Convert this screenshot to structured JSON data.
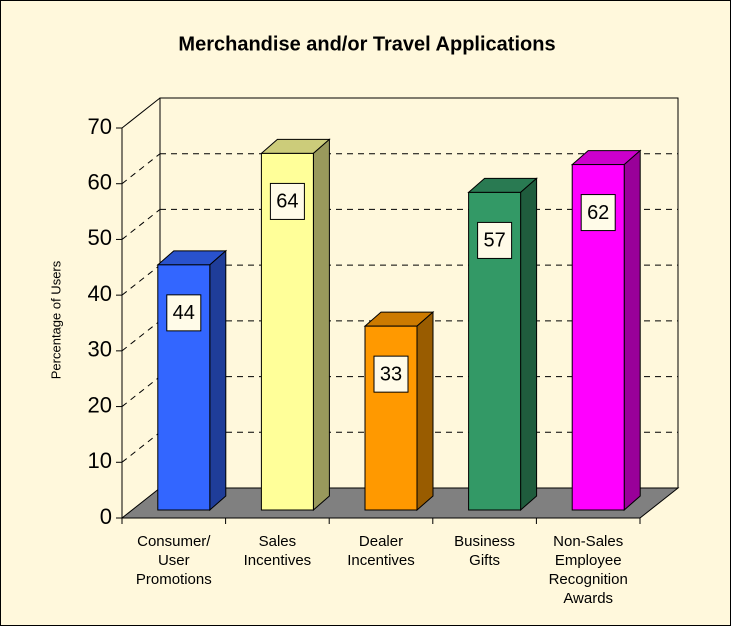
{
  "chart_data": {
    "type": "bar3d",
    "title": "Merchandise and/or Travel Applications",
    "y_label": "Percentage of Users",
    "categories": [
      "Consumer/ User Promotions",
      "Sales Incentives",
      "Dealer Incentives",
      "Business Gifts",
      "Non-Sales Employee Recognition Awards"
    ],
    "values": [
      44,
      64,
      33,
      57,
      62
    ],
    "colors": [
      "#3366ff",
      "#ffff99",
      "#ff9900",
      "#339966",
      "#ff00ff"
    ],
    "ylim": [
      0,
      70
    ],
    "yticks": [
      0,
      10,
      20,
      30,
      40,
      50,
      60,
      70
    ],
    "grid": true
  }
}
